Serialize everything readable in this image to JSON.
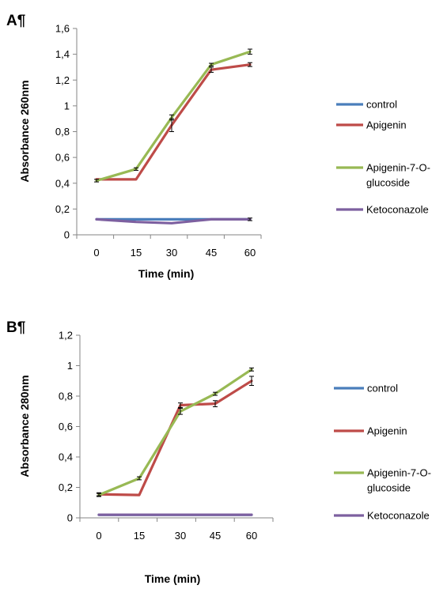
{
  "chart_data": [
    {
      "type": "line",
      "panel_label": "A¶",
      "xlabel": "Time (min)",
      "ylabel": "Absorbance 260nm",
      "x": [
        "0",
        "15",
        "30",
        "45",
        "60"
      ],
      "ylim": [
        0,
        1.6
      ],
      "yticks": [
        "0",
        "0,2",
        "0,4",
        "0,6",
        "0,8",
        "1",
        "1,2",
        "1,4",
        "1,6"
      ],
      "grid": false,
      "legend_position": "right",
      "series": [
        {
          "name": "control",
          "color": "#4A7EBB",
          "values": [
            0.12,
            0.12,
            0.12,
            0.12,
            0.12
          ],
          "errors": [
            0,
            0,
            0,
            0,
            0.01
          ]
        },
        {
          "name": "Apigenin",
          "color": "#BE4B48",
          "values": [
            0.43,
            0.43,
            0.85,
            1.28,
            1.32
          ],
          "errors": [
            0,
            0,
            0.05,
            0.02,
            0.015
          ]
        },
        {
          "name": "Apigenin-7-O-glucoside",
          "color": "#98B954",
          "values": [
            0.42,
            0.51,
            0.91,
            1.32,
            1.42
          ],
          "errors": [
            0.01,
            0.01,
            0.02,
            0.01,
            0.02
          ]
        },
        {
          "name": "Ketoconazole",
          "color": "#7D60A0",
          "values": [
            0.12,
            0.1,
            0.09,
            0.12,
            0.12
          ],
          "errors": [
            0,
            0,
            0,
            0,
            0
          ]
        }
      ]
    },
    {
      "type": "line",
      "panel_label": "B¶",
      "xlabel": "Time (min)",
      "ylabel": "Absorbance 280nm",
      "x": [
        "0",
        "15",
        "30",
        "45",
        "60"
      ],
      "ylim": [
        0,
        1.2
      ],
      "yticks": [
        "0",
        "0,2",
        "0,4",
        "0,6",
        "0,8",
        "1",
        "1,2"
      ],
      "grid": false,
      "legend_position": "right",
      "series": [
        {
          "name": "control",
          "color": "#4A7EBB",
          "values": [
            0.02,
            0.02,
            0.02,
            0.02,
            0.02
          ],
          "errors": [
            0,
            0,
            0,
            0,
            0
          ]
        },
        {
          "name": "Apigenin",
          "color": "#BE4B48",
          "values": [
            0.155,
            0.15,
            0.74,
            0.75,
            0.9
          ],
          "errors": [
            0.01,
            0,
            0.015,
            0.02,
            0.03
          ]
        },
        {
          "name": "Apigenin-7-O-glucoside",
          "color": "#98B954",
          "values": [
            0.15,
            0.26,
            0.7,
            0.815,
            0.975
          ],
          "errors": [
            0.01,
            0.01,
            0.02,
            0.01,
            0.01
          ]
        },
        {
          "name": "Ketoconazole",
          "color": "#7D60A0",
          "values": [
            0.02,
            0.02,
            0.02,
            0.02,
            0.02
          ],
          "errors": [
            0,
            0,
            0,
            0,
            0
          ]
        }
      ]
    }
  ],
  "legend_labels": [
    [
      "control"
    ],
    [
      "Apigenin"
    ],
    [
      "Apigenin-7-O-",
      "glucoside"
    ],
    [
      "Ketoconazole"
    ]
  ]
}
